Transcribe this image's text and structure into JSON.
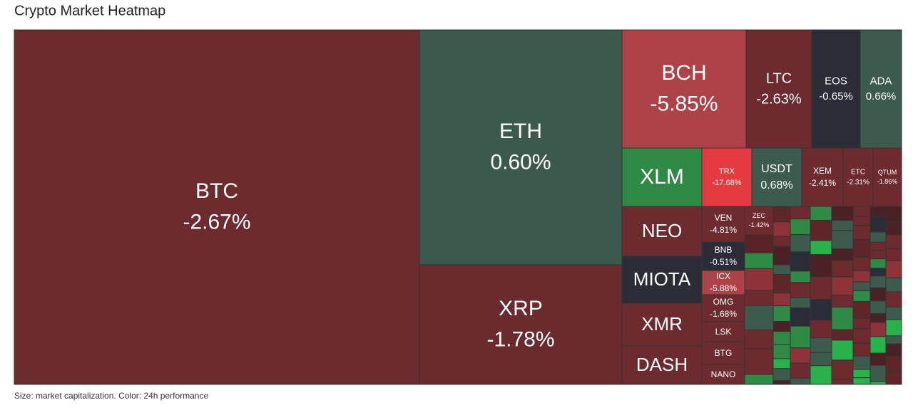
{
  "title": "Crypto Market Heatmap",
  "footer": "Size: market capitalization. Color: 24h performance",
  "tiles": [
    {
      "label": "BTC",
      "change": "-2.67%",
      "color": "#6d2b2f"
    },
    {
      "label": "ETH",
      "change": "0.60%",
      "color": "#3b5a4c"
    },
    {
      "label": "XRP",
      "change": "-1.78%",
      "color": "#6a2a2e"
    },
    {
      "label": "BCH",
      "change": "-5.85%",
      "color": "#ad4248"
    },
    {
      "label": "LTC",
      "change": "-2.63%",
      "color": "#6d2b2f"
    },
    {
      "label": "EOS",
      "change": "-0.65%",
      "color": "#2a2d37"
    },
    {
      "label": "ADA",
      "change": "0.66%",
      "color": "#3d5b4d"
    },
    {
      "label": "XLM",
      "color": "#2e8a45"
    },
    {
      "label": "TRX",
      "change": "-17.68%",
      "color": "#e53b40"
    },
    {
      "label": "USDT",
      "change": "0.68%",
      "color": "#3d5b4d"
    },
    {
      "label": "XEM",
      "change": "-2.41%",
      "color": "#6d2b2f"
    },
    {
      "label": "ETC",
      "change": "-2.31%",
      "color": "#6d2b2f"
    },
    {
      "label": "QTUM",
      "change": "-1.86%",
      "color": "#6d2b2f"
    },
    {
      "label": "NEO",
      "color": "#6d2b2f"
    },
    {
      "label": "MIOTA",
      "color": "#2a2d37"
    },
    {
      "label": "XMR",
      "color": "#6d2b2f"
    },
    {
      "label": "DASH",
      "color": "#6d2b2f"
    },
    {
      "label": "VEN",
      "change": "-4.81%",
      "color": "#6d2b2f"
    },
    {
      "label": "ZEC",
      "change": "-1.42%",
      "color": "#6d2b2f"
    },
    {
      "label": "BNB",
      "change": "-0.51%",
      "color": "#2a2d37"
    },
    {
      "label": "ICX",
      "change": "-5.88%",
      "color": "#ad4248"
    },
    {
      "label": "OMG",
      "change": "-1.68%",
      "color": "#6d2b2f"
    },
    {
      "label": "LSK",
      "color": "#6d2b2f"
    },
    {
      "label": "BTG",
      "color": "#6d2b2f"
    },
    {
      "label": "NANO",
      "color": "#6d2b2f"
    }
  ]
}
